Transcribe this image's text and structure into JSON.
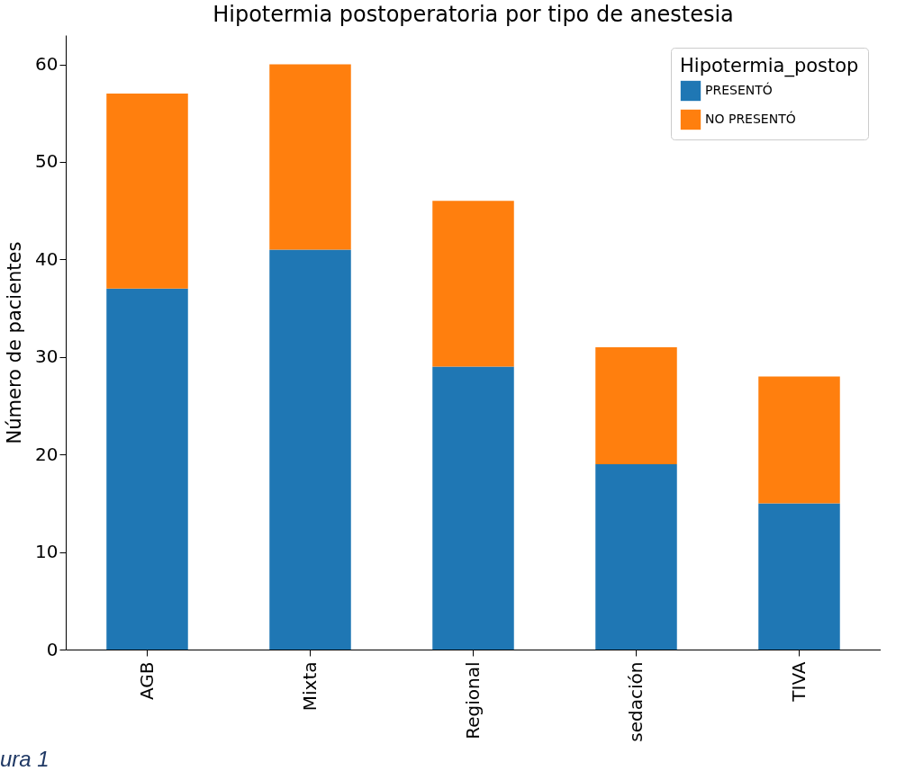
{
  "chart_data": {
    "type": "bar",
    "title": "Hipotermia postoperatoria por tipo de anestesia",
    "ylabel": "Número de pacientes",
    "legend_title": "Hipotermia_postop",
    "categories": [
      "AGB",
      "Mixta",
      "Regional",
      "sedación",
      "TIVA"
    ],
    "stacked": true,
    "series": [
      {
        "name": "PRESENTÓ",
        "color": "#1f77b4",
        "values": [
          37,
          41,
          29,
          19,
          15
        ]
      },
      {
        "name": "NO PRESENTÓ",
        "color": "#ff7f0e",
        "values": [
          20,
          19,
          17,
          12,
          13
        ]
      }
    ],
    "ylim": [
      0,
      63
    ],
    "yticks": [
      0,
      10,
      20,
      30,
      40,
      50,
      60
    ],
    "grid": false,
    "legend": "top right",
    "annotations": [
      "ura 1"
    ]
  }
}
